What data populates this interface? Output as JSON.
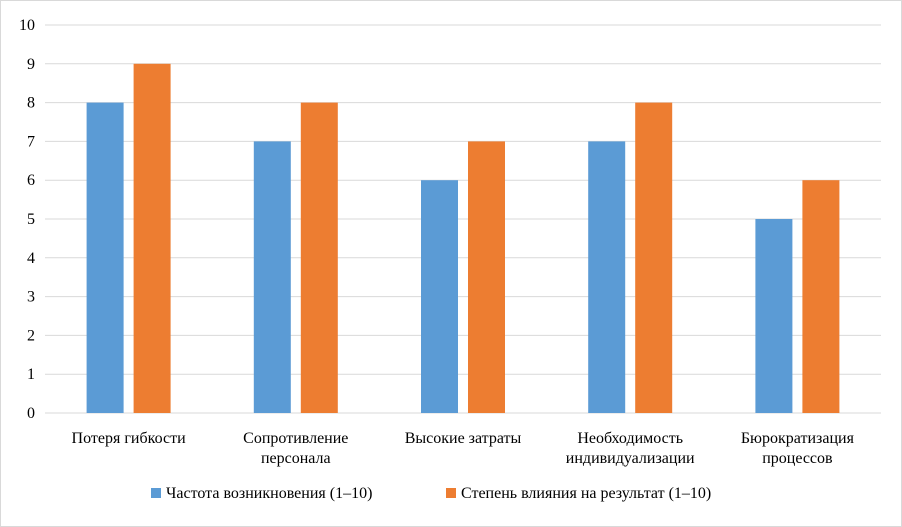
{
  "chart_data": {
    "type": "bar",
    "categories": [
      [
        "Потеря гибкости"
      ],
      [
        "Сопротивление",
        "персонала"
      ],
      [
        "Высокие затраты"
      ],
      [
        "Необходимость",
        "индивидуализации"
      ],
      [
        "Бюрократизация",
        "процессов"
      ]
    ],
    "series": [
      {
        "name": "Частота возникновения (1–10)",
        "color": "#5b9bd5",
        "values": [
          8,
          7,
          6,
          7,
          5
        ]
      },
      {
        "name": "Степень влияния на результат (1–10)",
        "color": "#ed7d31",
        "values": [
          9,
          8,
          7,
          8,
          6
        ]
      }
    ],
    "ylim": [
      0,
      10
    ],
    "yticks": [
      "0",
      "1",
      "2",
      "3",
      "4",
      "5",
      "6",
      "7",
      "8",
      "9",
      "10"
    ],
    "grid": true,
    "legend": "bottom",
    "title": "",
    "xlabel": "",
    "ylabel": ""
  }
}
